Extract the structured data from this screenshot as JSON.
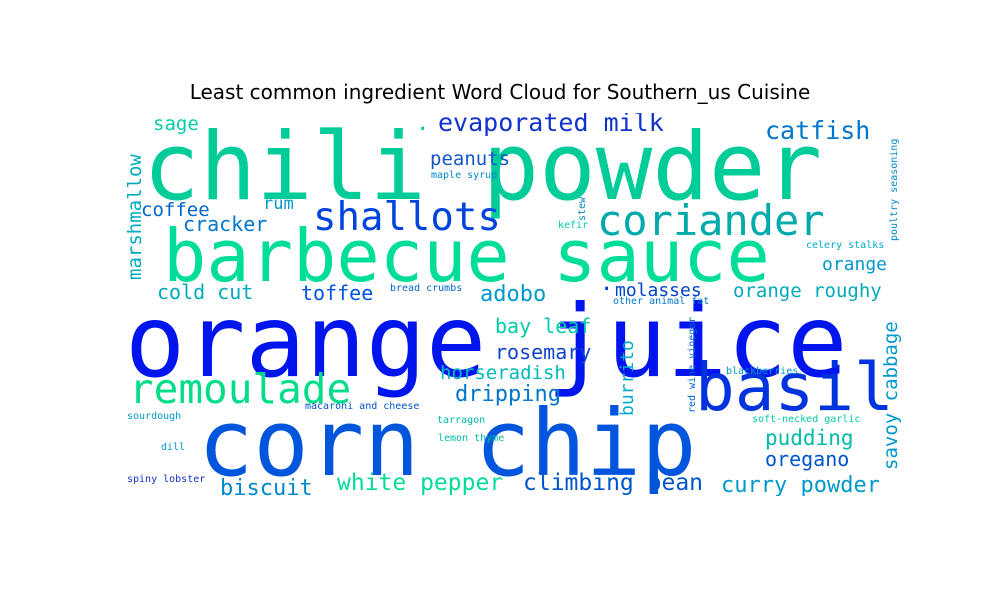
{
  "title": "Least common ingredient Word Cloud for Southern_us Cuisine",
  "chart_data": {
    "type": "wordcloud",
    "title": "Least common ingredient Word Cloud for Southern_us Cuisine",
    "colors": [
      "#00cc99",
      "#0000ee",
      "#0055dd",
      "#00aabb",
      "#00dd88",
      "#1133cc",
      "#0099cc",
      "#00bb99",
      "#0044cc",
      "#0066cc"
    ],
    "words": [
      {
        "text": "orange juice",
        "color": "#0015ee"
      },
      {
        "text": "chili powder",
        "color": "#00cc99"
      },
      {
        "text": "corn chip",
        "color": "#0055dd"
      },
      {
        "text": "barbecue sauce",
        "color": "#00dd99"
      },
      {
        "text": "basil",
        "color": "#0033dd"
      },
      {
        "text": "remoulade",
        "color": "#00dd88"
      },
      {
        "text": "coriander",
        "color": "#00aaaa"
      },
      {
        "text": "shallots",
        "color": "#0044dd"
      },
      {
        "text": "evaporated milk",
        "color": "#1133cc"
      },
      {
        "text": "catfish",
        "color": "#0077cc"
      },
      {
        "text": "white pepper",
        "color": "#00dd99"
      },
      {
        "text": "climbing bean",
        "color": "#0055cc"
      },
      {
        "text": "curry powder",
        "color": "#0099cc"
      },
      {
        "text": "biscuit",
        "color": "#0088cc"
      },
      {
        "text": "pudding",
        "color": "#00bbaa"
      },
      {
        "text": "oregano",
        "color": "#0055cc"
      },
      {
        "text": "dripping",
        "color": "#0077cc"
      },
      {
        "text": "adobo",
        "color": "#0099cc"
      },
      {
        "text": "bay leaf",
        "color": "#00ccaa"
      },
      {
        "text": "rosemary",
        "color": "#1144cc"
      },
      {
        "text": "horseradish",
        "color": "#00bbbb"
      },
      {
        "text": "peanuts",
        "color": "#1155cc"
      },
      {
        "text": "cracker",
        "color": "#0077cc"
      },
      {
        "text": "coffee",
        "color": "#0066cc"
      },
      {
        "text": "rum",
        "color": "#0099cc"
      },
      {
        "text": "toffee",
        "color": "#0055dd"
      },
      {
        "text": "cold cut",
        "color": "#00aabb"
      },
      {
        "text": "sage",
        "color": "#00ccaa"
      },
      {
        "text": "molasses",
        "color": "#0044cc"
      },
      {
        "text": "orange",
        "color": "#0099cc"
      },
      {
        "text": "orange roughy",
        "color": "#00aabb"
      },
      {
        "text": "marshmallow",
        "color": "#00aabb"
      },
      {
        "text": "savoy cabbage",
        "color": "#0099cc"
      },
      {
        "text": "burrito",
        "color": "#00aacc"
      },
      {
        "text": "maple syrup",
        "color": "#0088cc"
      },
      {
        "text": "stew",
        "color": "#0088bb"
      },
      {
        "text": "kefir",
        "color": "#00ccaa"
      },
      {
        "text": "poultry seasoning",
        "color": "#0088cc"
      },
      {
        "text": "celery stalks",
        "color": "#00aacc"
      },
      {
        "text": "bread crumbs",
        "color": "#0066cc"
      },
      {
        "text": "other animal fat",
        "color": "#0077cc"
      },
      {
        "text": "red wine vinegar",
        "color": "#0066cc"
      },
      {
        "text": "blackberries",
        "color": "#0099cc"
      },
      {
        "text": "macaroni and cheese",
        "color": "#0055cc"
      },
      {
        "text": "sourdough",
        "color": "#0099cc"
      },
      {
        "text": "tarragon",
        "color": "#00bbaa"
      },
      {
        "text": "soft-necked garlic",
        "color": "#00ccaa"
      },
      {
        "text": "lemon thyme",
        "color": "#00bbaa"
      },
      {
        "text": "dill",
        "color": "#0099cc"
      },
      {
        "text": "spiny lobster",
        "color": "#1133cc"
      },
      {
        "text": ".",
        "color": "#0033dd"
      },
      {
        "text": ".",
        "color": "#00cc99"
      }
    ]
  }
}
